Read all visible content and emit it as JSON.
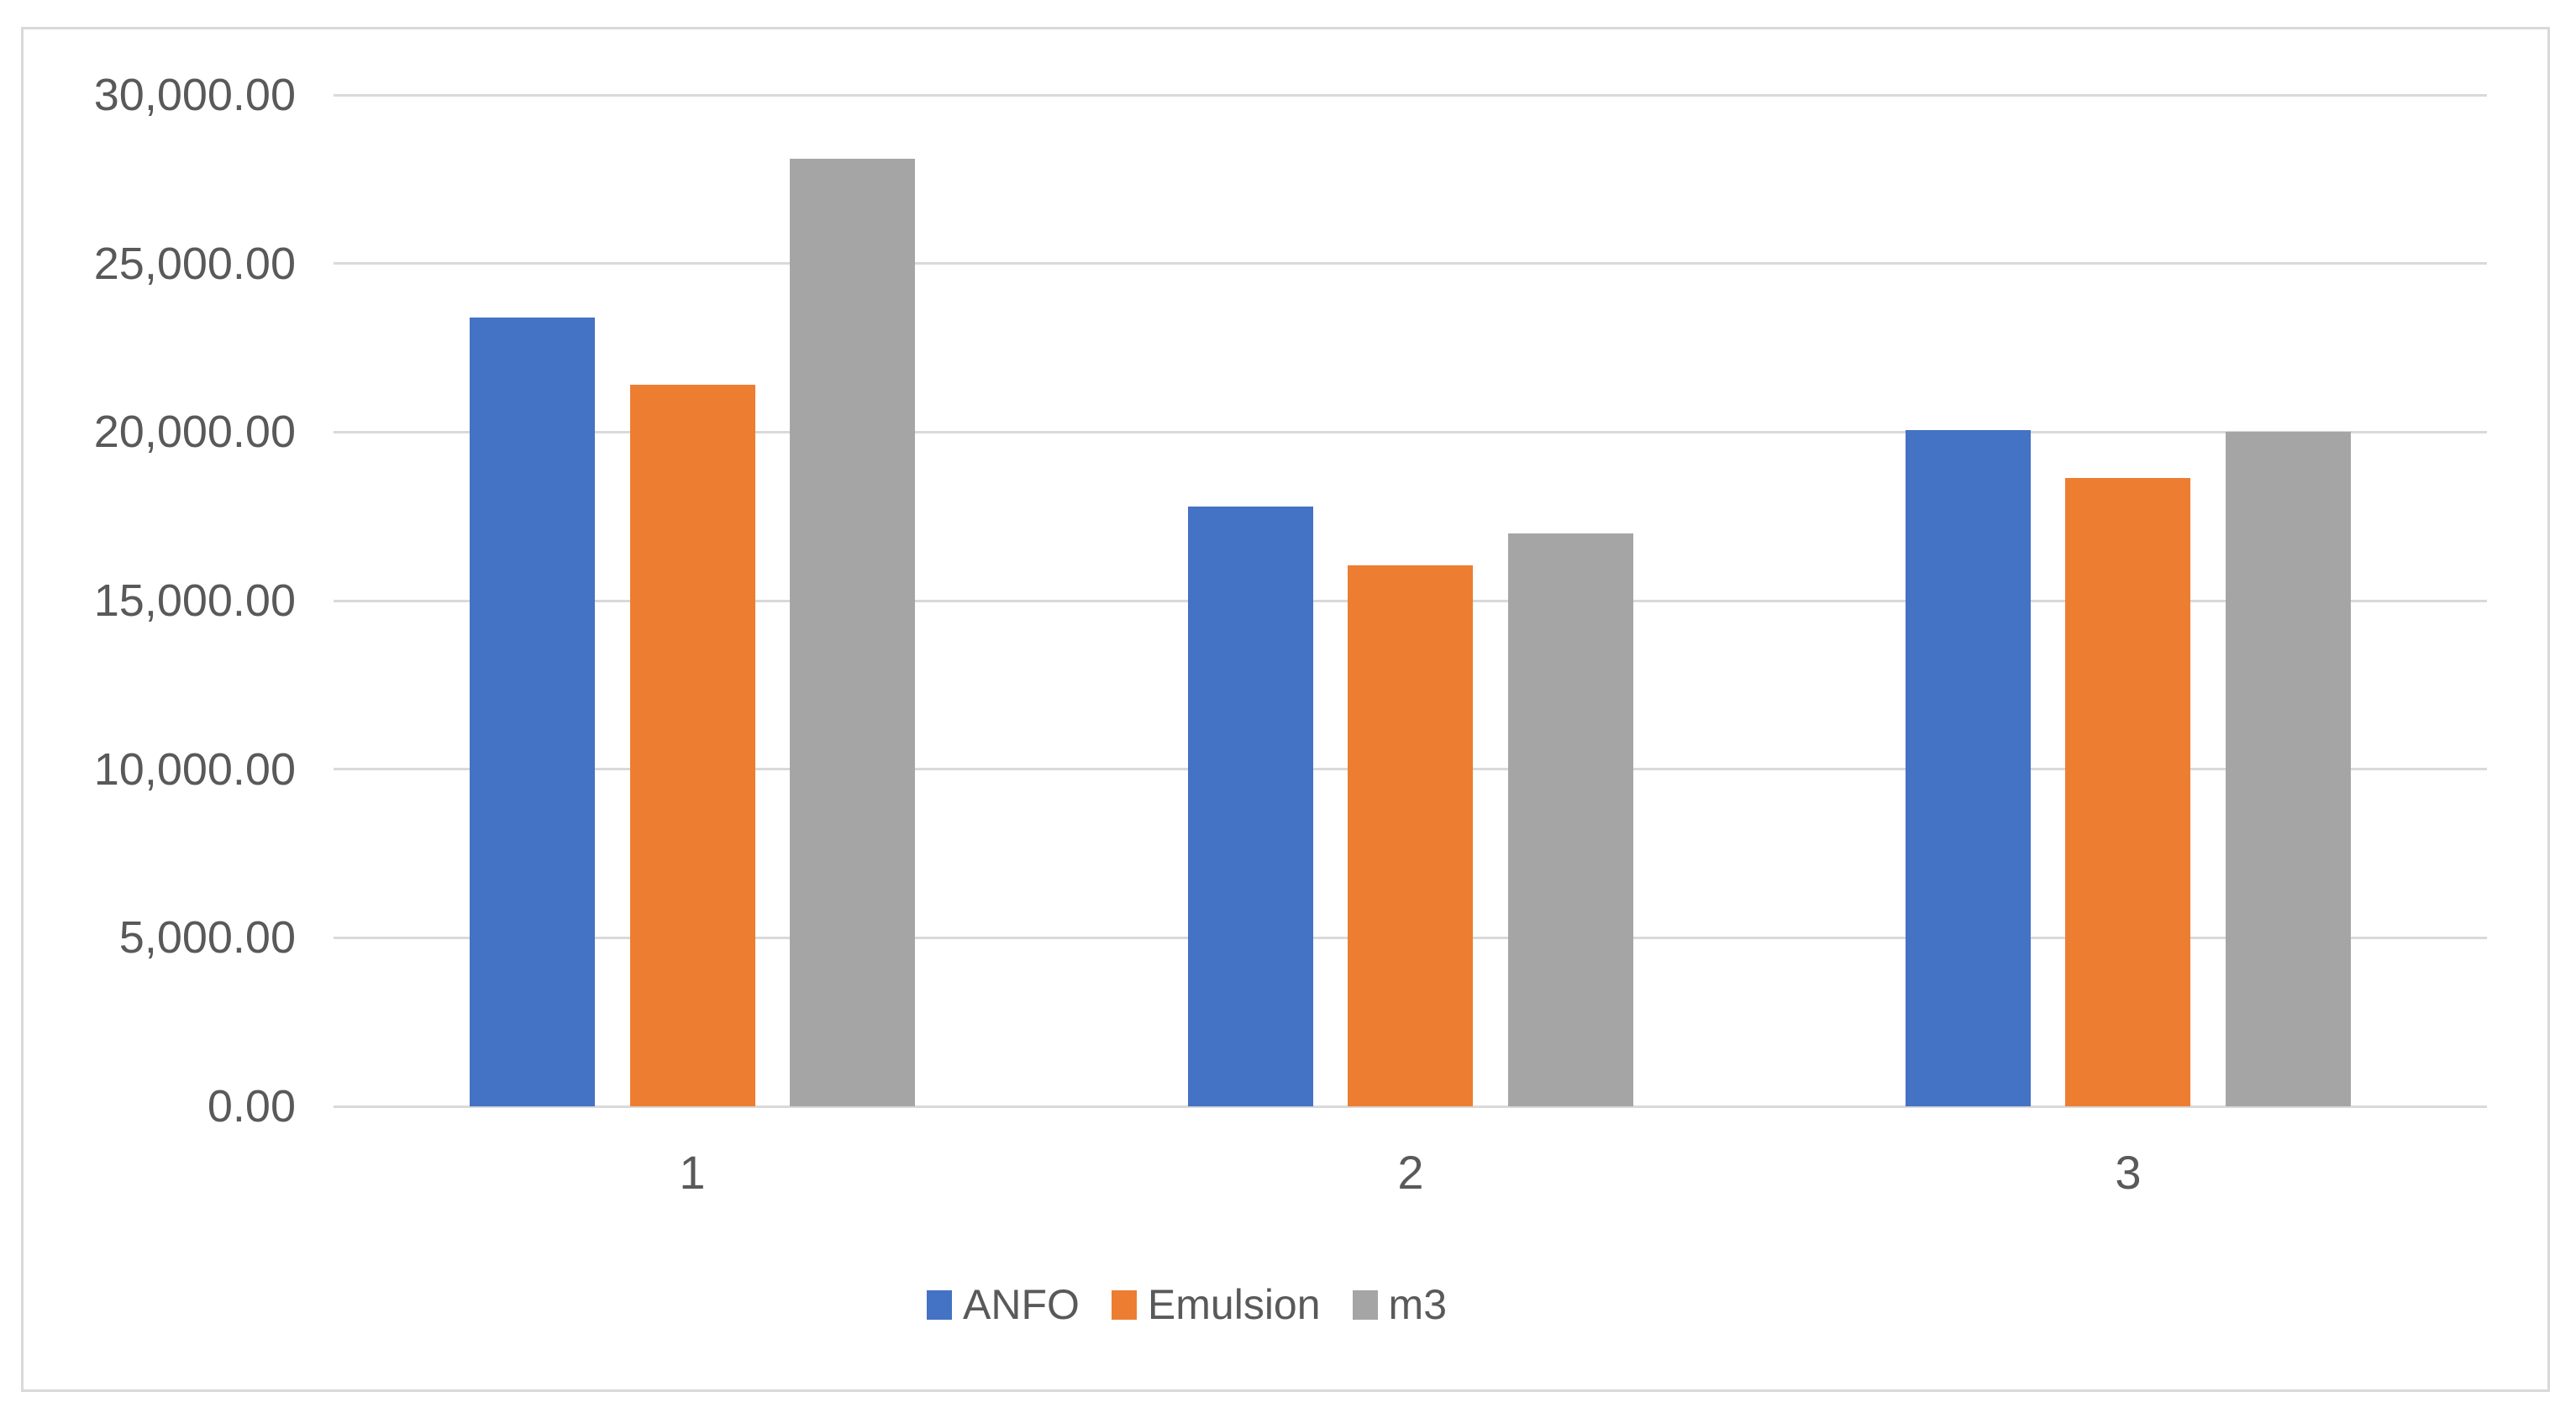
{
  "colors": {
    "frame_border": "#d9d9d9",
    "gridline": "#d9d9d9",
    "axis_text": "#595959",
    "background": "#ffffff"
  },
  "chart_data": {
    "type": "bar",
    "title": "",
    "xlabel": "",
    "ylabel": "",
    "categories": [
      "1",
      "2",
      "3"
    ],
    "series": [
      {
        "name": "ANFO",
        "color": "#4472c4",
        "values": [
          23400,
          17800,
          20050
        ]
      },
      {
        "name": "Emulsion",
        "color": "#ed7d31",
        "values": [
          21400,
          16050,
          18650
        ]
      },
      {
        "name": "m3",
        "color": "#a5a5a5",
        "values": [
          28100,
          17000,
          20000
        ]
      }
    ],
    "ylim": [
      0,
      30000
    ],
    "ytick_step": 5000,
    "yticks": [
      {
        "value": 0,
        "label": "0.00"
      },
      {
        "value": 5000,
        "label": "5,000.00"
      },
      {
        "value": 10000,
        "label": "10,000.00"
      },
      {
        "value": 15000,
        "label": "15,000.00"
      },
      {
        "value": 20000,
        "label": "20,000.00"
      },
      {
        "value": 25000,
        "label": "25,000.00"
      },
      {
        "value": 30000,
        "label": "30,000.00"
      }
    ],
    "grid": "horizontal",
    "legend_position": "bottom-center"
  }
}
